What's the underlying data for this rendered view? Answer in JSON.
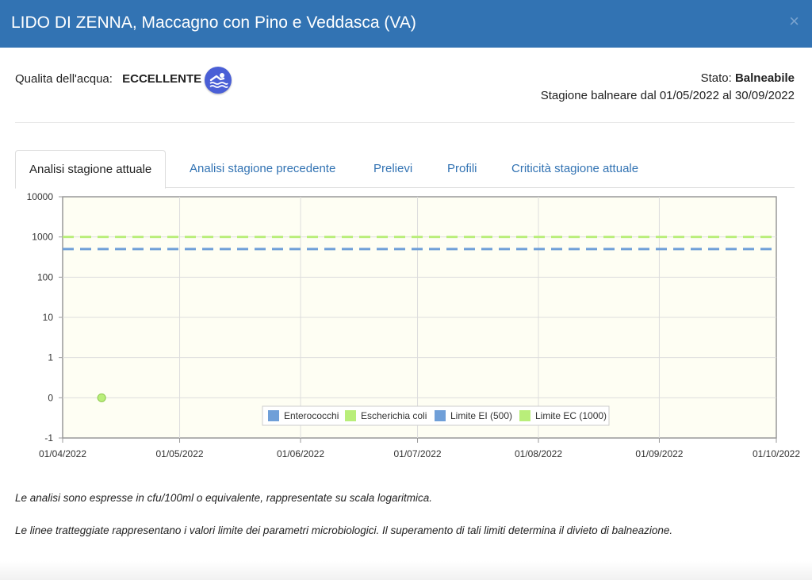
{
  "header": {
    "title": "LIDO DI ZENNA, Maccagno con Pino e Veddasca (VA)",
    "close_glyph": "×"
  },
  "quality": {
    "label": "Qualita dell'acqua:",
    "value": "ECCELLENTE",
    "icon": "swimmer-icon"
  },
  "status": {
    "label": "Stato:",
    "value": "Balneabile",
    "season": "Stagione balneare dal 01/05/2022 al 30/09/2022"
  },
  "tabs": [
    {
      "label": "Analisi stagione attuale",
      "active": true
    },
    {
      "label": "Analisi stagione precedente",
      "active": false
    },
    {
      "label": "Prelievi",
      "active": false
    },
    {
      "label": "Profili",
      "active": false
    },
    {
      "label": "Criticità stagione attuale",
      "active": false
    }
  ],
  "chart_data": {
    "type": "line",
    "y_scale": "log",
    "y_ticks": [
      "10000",
      "1000",
      "100",
      "10",
      "1",
      "0",
      "-1"
    ],
    "x_ticks": [
      "01/04/2022",
      "01/05/2022",
      "01/06/2022",
      "01/07/2022",
      "01/08/2022",
      "01/09/2022",
      "01/10/2022"
    ],
    "xlim": [
      "01/04/2022",
      "01/10/2022"
    ],
    "grid": true,
    "legend_position": "bottom-right",
    "series": [
      {
        "name": "Enterococchi",
        "color": "#6f9fd8",
        "points": []
      },
      {
        "name": "Escherichia coli",
        "color": "#b9ee7a",
        "points": [
          {
            "x": "11/04/2022",
            "y": "0"
          }
        ]
      },
      {
        "name": "Limite EI (500)",
        "color": "#6f9fd8",
        "dashed": true,
        "value": 500
      },
      {
        "name": "Limite EC (1000)",
        "color": "#b9ee7a",
        "dashed": true,
        "value": 1000
      }
    ]
  },
  "notes": [
    "Le analisi sono espresse in cfu/100ml o equivalente, rappresentate su scala logaritmica.",
    "Le linee tratteggiate rappresentano i valori limite dei parametri microbiologici. Il superamento di tali limiti determina il divieto di balneazione."
  ]
}
